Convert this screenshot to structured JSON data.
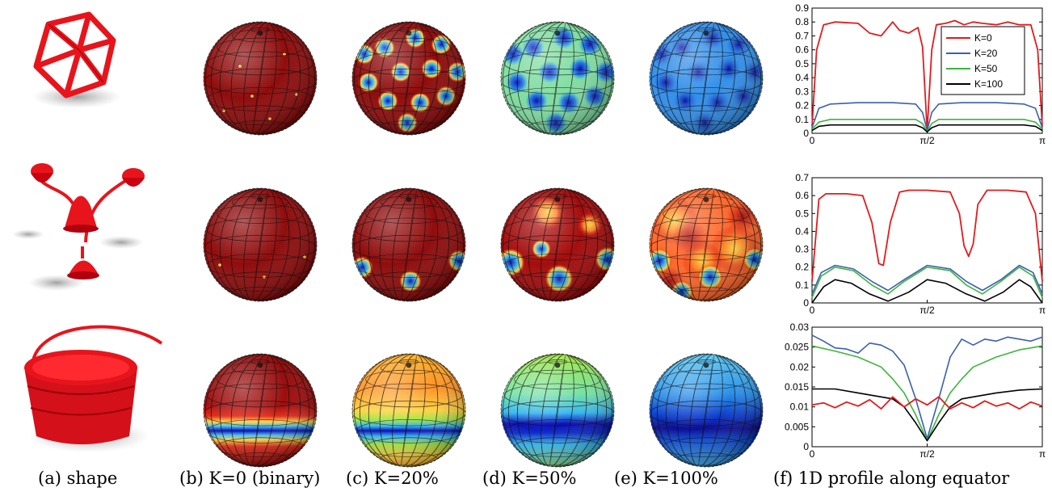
{
  "captions": {
    "a": "(a) shape",
    "b": "(b) K=0 (binary)",
    "c": "(c) K=20%",
    "d": "(d) K=50%",
    "e": "(e) K=100%",
    "f": "(f) 1D profile along equator"
  },
  "colors": {
    "shape_red": "#e8141c",
    "sphere_dark_red": "#870000",
    "jet_blue": "#0000b4",
    "jet_cyan": "#2db4f0",
    "jet_green": "#a0e63c",
    "jet_yellow": "#ffd23c",
    "jet_red": "#c80000",
    "K0": "#e41a1c",
    "K20": "#3a5fb0",
    "K50": "#3cb43c",
    "K100": "#000000"
  },
  "spheres": [
    {
      "row": 1,
      "col": "b",
      "style": "binary-dots"
    },
    {
      "row": 1,
      "col": "c",
      "style": "red-with-blue-spots"
    },
    {
      "row": 1,
      "col": "d",
      "style": "green-with-blue-spots"
    },
    {
      "row": 1,
      "col": "e",
      "style": "blue-with-dark-spots"
    },
    {
      "row": 2,
      "col": "b",
      "style": "binary-dots"
    },
    {
      "row": 2,
      "col": "c",
      "style": "red-with-few-spots"
    },
    {
      "row": 2,
      "col": "d",
      "style": "red-with-spots-and-patches"
    },
    {
      "row": 2,
      "col": "e",
      "style": "mixed-red-yellow-blue"
    },
    {
      "row": 3,
      "col": "b",
      "style": "red-with-blue-equator-band"
    },
    {
      "row": 3,
      "col": "c",
      "style": "orange-with-blue-equator-band"
    },
    {
      "row": 3,
      "col": "d",
      "style": "cyan-with-blue-equator-band"
    },
    {
      "row": 3,
      "col": "e",
      "style": "blue-with-dark-equator-band"
    }
  ],
  "chart_data": [
    {
      "type": "line",
      "xticks": [
        "0",
        "π/2",
        "π"
      ],
      "ylim": [
        0,
        0.9
      ],
      "yticks": [
        "0",
        "0.1",
        "0.2",
        "0.3",
        "0.4",
        "0.5",
        "0.6",
        "0.7",
        "0.8",
        "0.9"
      ],
      "legend_position": "top-right",
      "grid": false,
      "series": [
        {
          "name": "K=0",
          "color": "#e41a1c",
          "x": [
            0,
            0.02,
            0.05,
            0.1,
            0.2,
            0.25,
            0.3,
            0.35,
            0.38,
            0.42,
            0.46,
            0.48,
            0.5,
            0.52,
            0.54,
            0.58,
            0.62,
            0.66,
            0.7,
            0.74,
            0.8,
            0.85,
            0.9,
            0.95,
            0.98,
            1.0
          ],
          "y": [
            0.05,
            0.6,
            0.78,
            0.8,
            0.79,
            0.72,
            0.7,
            0.8,
            0.74,
            0.72,
            0.76,
            0.62,
            0.02,
            0.6,
            0.78,
            0.79,
            0.81,
            0.78,
            0.8,
            0.79,
            0.78,
            0.8,
            0.78,
            0.78,
            0.6,
            0.05
          ]
        },
        {
          "name": "K=20",
          "color": "#3a5fb0",
          "x": [
            0,
            0.03,
            0.08,
            0.2,
            0.35,
            0.45,
            0.48,
            0.5,
            0.52,
            0.55,
            0.65,
            0.8,
            0.92,
            0.97,
            1.0
          ],
          "y": [
            0.04,
            0.18,
            0.21,
            0.22,
            0.22,
            0.21,
            0.15,
            0.02,
            0.15,
            0.21,
            0.22,
            0.22,
            0.21,
            0.18,
            0.04
          ]
        },
        {
          "name": "K=50",
          "color": "#3cb43c",
          "x": [
            0,
            0.03,
            0.08,
            0.2,
            0.35,
            0.45,
            0.48,
            0.5,
            0.52,
            0.55,
            0.65,
            0.8,
            0.92,
            0.97,
            1.0
          ],
          "y": [
            0.03,
            0.08,
            0.1,
            0.1,
            0.1,
            0.1,
            0.07,
            0.01,
            0.07,
            0.1,
            0.1,
            0.1,
            0.1,
            0.08,
            0.03
          ]
        },
        {
          "name": "K=100",
          "color": "#000000",
          "x": [
            0,
            0.03,
            0.08,
            0.2,
            0.35,
            0.45,
            0.48,
            0.5,
            0.52,
            0.55,
            0.65,
            0.8,
            0.92,
            0.97,
            1.0
          ],
          "y": [
            0.02,
            0.05,
            0.06,
            0.06,
            0.06,
            0.06,
            0.04,
            0.01,
            0.04,
            0.06,
            0.06,
            0.06,
            0.06,
            0.05,
            0.02
          ]
        }
      ]
    },
    {
      "type": "line",
      "xticks": [
        "0",
        "π/2",
        "π"
      ],
      "ylim": [
        0,
        0.7
      ],
      "yticks": [
        "0",
        "0.1",
        "0.2",
        "0.3",
        "0.4",
        "0.5",
        "0.6",
        "0.7"
      ],
      "grid": false,
      "series": [
        {
          "name": "K=0",
          "color": "#e41a1c",
          "x": [
            0,
            0.03,
            0.06,
            0.15,
            0.22,
            0.26,
            0.29,
            0.31,
            0.34,
            0.38,
            0.42,
            0.5,
            0.6,
            0.64,
            0.66,
            0.68,
            0.7,
            0.72,
            0.76,
            0.85,
            0.93,
            0.97,
            1.0
          ],
          "y": [
            0.12,
            0.58,
            0.61,
            0.61,
            0.6,
            0.45,
            0.22,
            0.21,
            0.45,
            0.62,
            0.63,
            0.63,
            0.62,
            0.5,
            0.32,
            0.26,
            0.33,
            0.55,
            0.63,
            0.63,
            0.62,
            0.5,
            0.12
          ]
        },
        {
          "name": "K=20",
          "color": "#3a5fb0",
          "x": [
            0,
            0.04,
            0.1,
            0.18,
            0.26,
            0.33,
            0.4,
            0.5,
            0.6,
            0.67,
            0.74,
            0.82,
            0.9,
            0.96,
            1.0
          ],
          "y": [
            0.05,
            0.17,
            0.21,
            0.19,
            0.12,
            0.07,
            0.13,
            0.21,
            0.19,
            0.12,
            0.07,
            0.13,
            0.21,
            0.17,
            0.05
          ]
        },
        {
          "name": "K=50",
          "color": "#3cb43c",
          "x": [
            0,
            0.04,
            0.1,
            0.18,
            0.26,
            0.33,
            0.4,
            0.5,
            0.6,
            0.67,
            0.74,
            0.82,
            0.9,
            0.96,
            1.0
          ],
          "y": [
            0.03,
            0.15,
            0.2,
            0.18,
            0.1,
            0.05,
            0.12,
            0.2,
            0.18,
            0.1,
            0.05,
            0.12,
            0.2,
            0.15,
            0.03
          ]
        },
        {
          "name": "K=100",
          "color": "#000000",
          "x": [
            0,
            0.05,
            0.1,
            0.17,
            0.25,
            0.33,
            0.42,
            0.5,
            0.58,
            0.67,
            0.75,
            0.83,
            0.9,
            0.95,
            1.0
          ],
          "y": [
            0.0,
            0.09,
            0.13,
            0.11,
            0.05,
            0.01,
            0.06,
            0.13,
            0.11,
            0.05,
            0.01,
            0.06,
            0.13,
            0.09,
            0.0
          ]
        }
      ]
    },
    {
      "type": "line",
      "xticks": [
        "0",
        "π/2",
        "π"
      ],
      "ylim": [
        0,
        0.03
      ],
      "yticks": [
        "0",
        "0.005",
        "0.01",
        "0.015",
        "0.02",
        "0.025",
        "0.03"
      ],
      "grid": false,
      "series": [
        {
          "name": "K=20",
          "color": "#3a5fb0",
          "x": [
            0,
            0.05,
            0.1,
            0.15,
            0.2,
            0.25,
            0.3,
            0.35,
            0.4,
            0.45,
            0.5,
            0.55,
            0.6,
            0.65,
            0.7,
            0.75,
            0.8,
            0.85,
            0.9,
            0.95,
            1.0
          ],
          "y": [
            0.028,
            0.0265,
            0.0248,
            0.0245,
            0.0235,
            0.026,
            0.0255,
            0.024,
            0.0205,
            0.012,
            0.002,
            0.012,
            0.0225,
            0.027,
            0.0255,
            0.027,
            0.0265,
            0.0275,
            0.027,
            0.0265,
            0.0275
          ]
        },
        {
          "name": "K=50",
          "color": "#3cb43c",
          "x": [
            0,
            0.1,
            0.2,
            0.3,
            0.35,
            0.4,
            0.45,
            0.5,
            0.55,
            0.6,
            0.65,
            0.7,
            0.8,
            0.9,
            1.0
          ],
          "y": [
            0.0253,
            0.024,
            0.0225,
            0.02,
            0.017,
            0.0135,
            0.008,
            0.0015,
            0.008,
            0.0135,
            0.017,
            0.02,
            0.0225,
            0.0243,
            0.0253
          ]
        },
        {
          "name": "K=100",
          "color": "#000000",
          "x": [
            0,
            0.1,
            0.2,
            0.3,
            0.35,
            0.4,
            0.45,
            0.5,
            0.55,
            0.6,
            0.65,
            0.7,
            0.8,
            0.9,
            1.0
          ],
          "y": [
            0.0145,
            0.0145,
            0.0135,
            0.0125,
            0.012,
            0.01,
            0.006,
            0.0015,
            0.006,
            0.01,
            0.012,
            0.0125,
            0.0135,
            0.0142,
            0.0145
          ]
        },
        {
          "name": "K=0",
          "color": "#e41a1c",
          "x": [
            0,
            0.05,
            0.1,
            0.15,
            0.2,
            0.25,
            0.3,
            0.35,
            0.4,
            0.45,
            0.5,
            0.55,
            0.6,
            0.65,
            0.7,
            0.75,
            0.8,
            0.85,
            0.9,
            0.95,
            1.0
          ],
          "y": [
            0.0105,
            0.011,
            0.0098,
            0.0112,
            0.0102,
            0.0118,
            0.0095,
            0.0125,
            0.01,
            0.012,
            0.0105,
            0.0125,
            0.0095,
            0.011,
            0.0098,
            0.0115,
            0.0102,
            0.011,
            0.0095,
            0.0112,
            0.0102
          ]
        }
      ]
    }
  ]
}
